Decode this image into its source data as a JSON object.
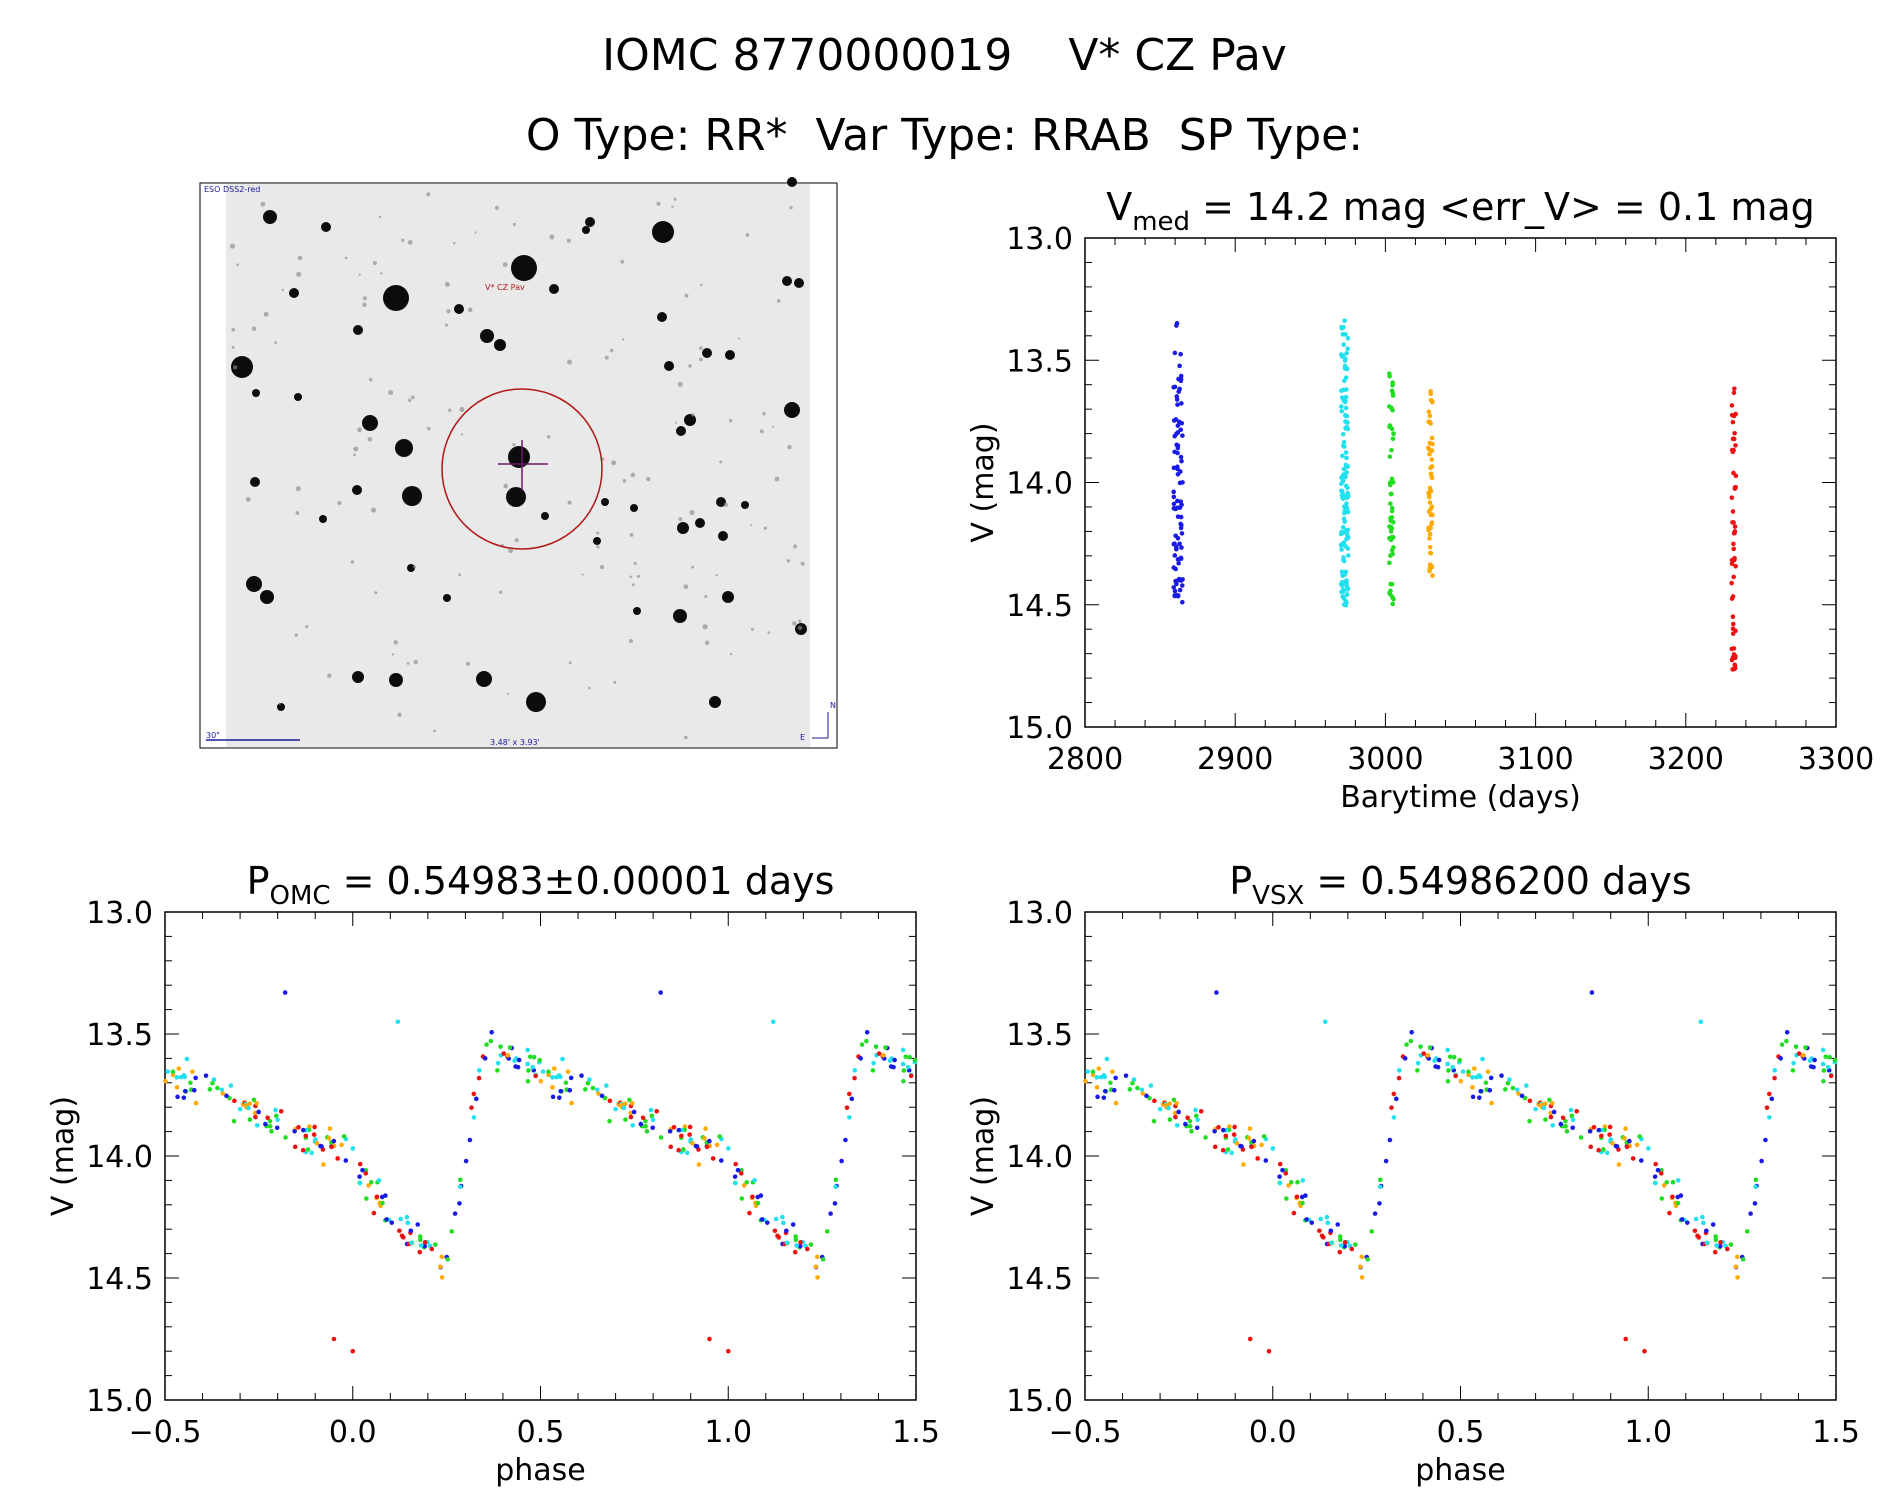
{
  "header": {
    "line1": "IOMC 8770000019    V* CZ Pav",
    "line2": "O Type: RR*  Var Type: RRAB  SP Type:"
  },
  "sky_image": {
    "survey_label": "ESO DSS2-red",
    "object_label": "V* CZ Pav",
    "scale_label": "30\"",
    "coord_label": "3.48' x 3.93'",
    "compass_n": "N",
    "compass_e": "E"
  },
  "colors": {
    "blue": "#1a1ae6",
    "cyan": "#22e0ee",
    "green": "#22dd22",
    "orange": "#ffaa00",
    "red": "#ee1111",
    "circle": "#b01818",
    "cross": "#6a1a6a",
    "sky_label": "#1a1a9a"
  },
  "chart_data": [
    {
      "id": "lightcurve",
      "type": "scatter",
      "title_main": "V",
      "title_sub": "med",
      "title_rest": " = 14.2 mag <err_V> = 0.1 mag",
      "xlabel": "Barytime (days)",
      "ylabel": "V (mag)",
      "xlim": [
        2800,
        3300
      ],
      "ylim": [
        15.0,
        13.0
      ],
      "xticks": [
        2800,
        2900,
        3000,
        3100,
        3200,
        3300
      ],
      "xtick_labels": [
        "2800",
        "2900",
        "3000",
        "3100",
        "3200",
        "3300"
      ],
      "yticks": [
        13.0,
        13.5,
        14.0,
        14.5,
        15.0
      ],
      "ytick_labels": [
        "13.0",
        "13.5",
        "14.0",
        "14.5",
        "15.0"
      ],
      "series": [
        {
          "name": "season1",
          "color": "blue",
          "x": 2862,
          "x_spread": 6,
          "mag_min": 13.33,
          "mag_max": 14.5
        },
        {
          "name": "season2",
          "color": "cyan",
          "x": 2973,
          "x_spread": 5,
          "mag_min": 13.33,
          "mag_max": 14.52
        },
        {
          "name": "season3",
          "color": "green",
          "x": 3004,
          "x_spread": 3,
          "mag_min": 13.52,
          "mag_max": 14.5
        },
        {
          "name": "season4",
          "color": "orange",
          "x": 3030,
          "x_spread": 3,
          "mag_min": 13.62,
          "mag_max": 14.4
        },
        {
          "name": "season5",
          "color": "red",
          "x": 3232,
          "x_spread": 3,
          "mag_min": 13.56,
          "mag_max": 14.8
        }
      ]
    },
    {
      "id": "phase_omc",
      "type": "scatter",
      "title_main": "P",
      "title_sub": "OMC",
      "title_rest": " = 0.54983±0.00001 days",
      "xlabel": "phase",
      "ylabel": "V (mag)",
      "xlim": [
        -0.5,
        1.5
      ],
      "ylim": [
        15.0,
        13.0
      ],
      "xticks": [
        -0.5,
        0.0,
        0.5,
        1.0,
        1.5
      ],
      "xtick_labels": [
        "−0.5",
        "0.0",
        "0.5",
        "1.0",
        "1.5"
      ],
      "yticks": [
        13.0,
        13.5,
        14.0,
        14.5,
        15.0
      ],
      "ytick_labels": [
        "13.0",
        "13.5",
        "14.0",
        "14.5",
        "15.0"
      ],
      "curve": {
        "min_mag": 14.45,
        "max_mag": 13.55,
        "rise_start_phase": 0.25,
        "max_phase": 0.35,
        "scatter": 0.1
      },
      "outliers": [
        {
          "phase": -0.18,
          "mag": 13.33,
          "color": "blue"
        },
        {
          "phase": 0.12,
          "mag": 13.45,
          "color": "cyan"
        },
        {
          "phase": -0.05,
          "mag": 14.75,
          "color": "red"
        },
        {
          "phase": 0.0,
          "mag": 14.8,
          "color": "red"
        },
        {
          "phase": 0.07,
          "mag": 14.1,
          "color": "cyan"
        }
      ]
    },
    {
      "id": "phase_vsx",
      "type": "scatter",
      "title_main": "P",
      "title_sub": "VSX",
      "title_rest": " = 0.54986200 days",
      "xlabel": "phase",
      "ylabel": "V (mag)",
      "xlim": [
        -0.5,
        1.5
      ],
      "ylim": [
        15.0,
        13.0
      ],
      "xticks": [
        -0.5,
        0.0,
        0.5,
        1.0,
        1.5
      ],
      "xtick_labels": [
        "−0.5",
        "0.0",
        "0.5",
        "1.0",
        "1.5"
      ],
      "yticks": [
        13.0,
        13.5,
        14.0,
        14.5,
        15.0
      ],
      "ytick_labels": [
        "13.0",
        "13.5",
        "14.0",
        "14.5",
        "15.0"
      ],
      "curve": {
        "min_mag": 14.45,
        "max_mag": 13.55,
        "rise_start_phase": 0.25,
        "max_phase": 0.35,
        "scatter": 0.1
      },
      "outliers": [
        {
          "phase": -0.15,
          "mag": 13.33,
          "color": "blue"
        },
        {
          "phase": 0.14,
          "mag": 13.45,
          "color": "cyan"
        },
        {
          "phase": -0.06,
          "mag": 14.75,
          "color": "red"
        },
        {
          "phase": -0.01,
          "mag": 14.8,
          "color": "red"
        },
        {
          "phase": 0.08,
          "mag": 14.1,
          "color": "cyan"
        }
      ]
    }
  ]
}
